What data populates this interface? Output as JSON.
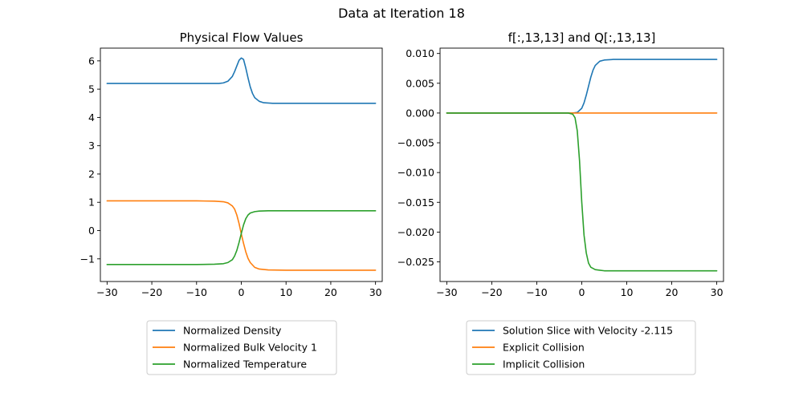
{
  "figure": {
    "title": "Data at Iteration 18"
  },
  "chart_data": [
    {
      "type": "line",
      "title": "Physical Flow Values",
      "xlabel": "",
      "ylabel": "",
      "xlim": [
        -31.5,
        31.5
      ],
      "ylim": [
        -1.8,
        6.45
      ],
      "x_ticks": [
        -30,
        -20,
        -10,
        0,
        10,
        20,
        30
      ],
      "x_tick_labels": [
        "−30",
        "−20",
        "−10",
        "0",
        "10",
        "20",
        "30"
      ],
      "y_ticks": [
        -1,
        0,
        1,
        2,
        3,
        4,
        5,
        6
      ],
      "y_tick_labels": [
        "−1",
        "0",
        "1",
        "2",
        "3",
        "4",
        "5",
        "6"
      ],
      "grid": false,
      "legend_position": "below",
      "series": [
        {
          "name": "Normalized Density",
          "color": "#1f77b4",
          "x": [
            -30,
            -10,
            -5,
            -4,
            -3,
            -2,
            -1.5,
            -1,
            -0.5,
            0,
            0.5,
            1,
            1.5,
            2,
            2.5,
            3,
            4,
            5,
            7,
            10,
            30
          ],
          "y": [
            5.2,
            5.2,
            5.2,
            5.22,
            5.28,
            5.45,
            5.62,
            5.82,
            6.02,
            6.1,
            6.05,
            5.75,
            5.4,
            5.08,
            4.85,
            4.7,
            4.57,
            4.52,
            4.5,
            4.5,
            4.5
          ]
        },
        {
          "name": "Normalized Bulk Velocity 1",
          "color": "#ff7f0e",
          "x": [
            -30,
            -10,
            -6,
            -4,
            -3,
            -2,
            -1.5,
            -1,
            -0.5,
            0,
            0.5,
            1,
            1.5,
            2,
            3,
            4,
            6,
            10,
            30
          ],
          "y": [
            1.05,
            1.05,
            1.04,
            1.02,
            0.98,
            0.87,
            0.76,
            0.55,
            0.25,
            -0.12,
            -0.45,
            -0.75,
            -0.98,
            -1.13,
            -1.3,
            -1.36,
            -1.39,
            -1.4,
            -1.4
          ]
        },
        {
          "name": "Normalized Temperature",
          "color": "#2ca02c",
          "x": [
            -30,
            -10,
            -6,
            -4,
            -3,
            -2,
            -1.5,
            -1,
            -0.5,
            0,
            0.5,
            1,
            1.5,
            2,
            3,
            4,
            6,
            10,
            30
          ],
          "y": [
            -1.2,
            -1.2,
            -1.19,
            -1.17,
            -1.13,
            -1.03,
            -0.9,
            -0.7,
            -0.42,
            -0.1,
            0.2,
            0.42,
            0.55,
            0.62,
            0.67,
            0.69,
            0.7,
            0.7,
            0.7
          ]
        }
      ]
    },
    {
      "type": "line",
      "title": "f[:,13,13] and Q[:,13,13]",
      "xlabel": "",
      "ylabel": "",
      "xlim": [
        -31.5,
        31.5
      ],
      "ylim": [
        -0.0283,
        0.0109
      ],
      "x_ticks": [
        -30,
        -20,
        -10,
        0,
        10,
        20,
        30
      ],
      "x_tick_labels": [
        "−30",
        "−20",
        "−10",
        "0",
        "10",
        "20",
        "30"
      ],
      "y_ticks": [
        0.01,
        0.005,
        0.0,
        -0.005,
        -0.01,
        -0.015,
        -0.02,
        -0.025
      ],
      "y_tick_labels": [
        "0.010",
        "0.005",
        "0.000",
        "−0.005",
        "−0.010",
        "−0.015",
        "−0.020",
        "−0.025"
      ],
      "grid": false,
      "legend_position": "below",
      "series": [
        {
          "name": "Solution Slice with Velocity -2.115",
          "color": "#1f77b4",
          "x": [
            -30,
            -3,
            -2,
            -1,
            0,
            0.5,
            1,
            1.5,
            2,
            2.5,
            3,
            4,
            5,
            7,
            10,
            30
          ],
          "y": [
            0.0,
            0.0,
            0.0,
            0.0001,
            0.0008,
            0.0017,
            0.003,
            0.0045,
            0.006,
            0.0072,
            0.008,
            0.0087,
            0.0089,
            0.009,
            0.009,
            0.009
          ]
        },
        {
          "name": "Explicit Collision",
          "color": "#ff7f0e",
          "x": [
            -30,
            30
          ],
          "y": [
            0.0,
            0.0
          ]
        },
        {
          "name": "Implicit Collision",
          "color": "#2ca02c",
          "x": [
            -30,
            -3,
            -2,
            -1.5,
            -1,
            -0.5,
            0,
            0.5,
            1,
            1.5,
            2,
            3,
            4,
            5,
            7,
            10,
            30
          ],
          "y": [
            0.0,
            0.0,
            -0.0002,
            -0.0008,
            -0.003,
            -0.008,
            -0.015,
            -0.0205,
            -0.0235,
            -0.0252,
            -0.0259,
            -0.0263,
            -0.0264,
            -0.0265,
            -0.0265,
            -0.0265,
            -0.0265
          ]
        }
      ]
    }
  ]
}
